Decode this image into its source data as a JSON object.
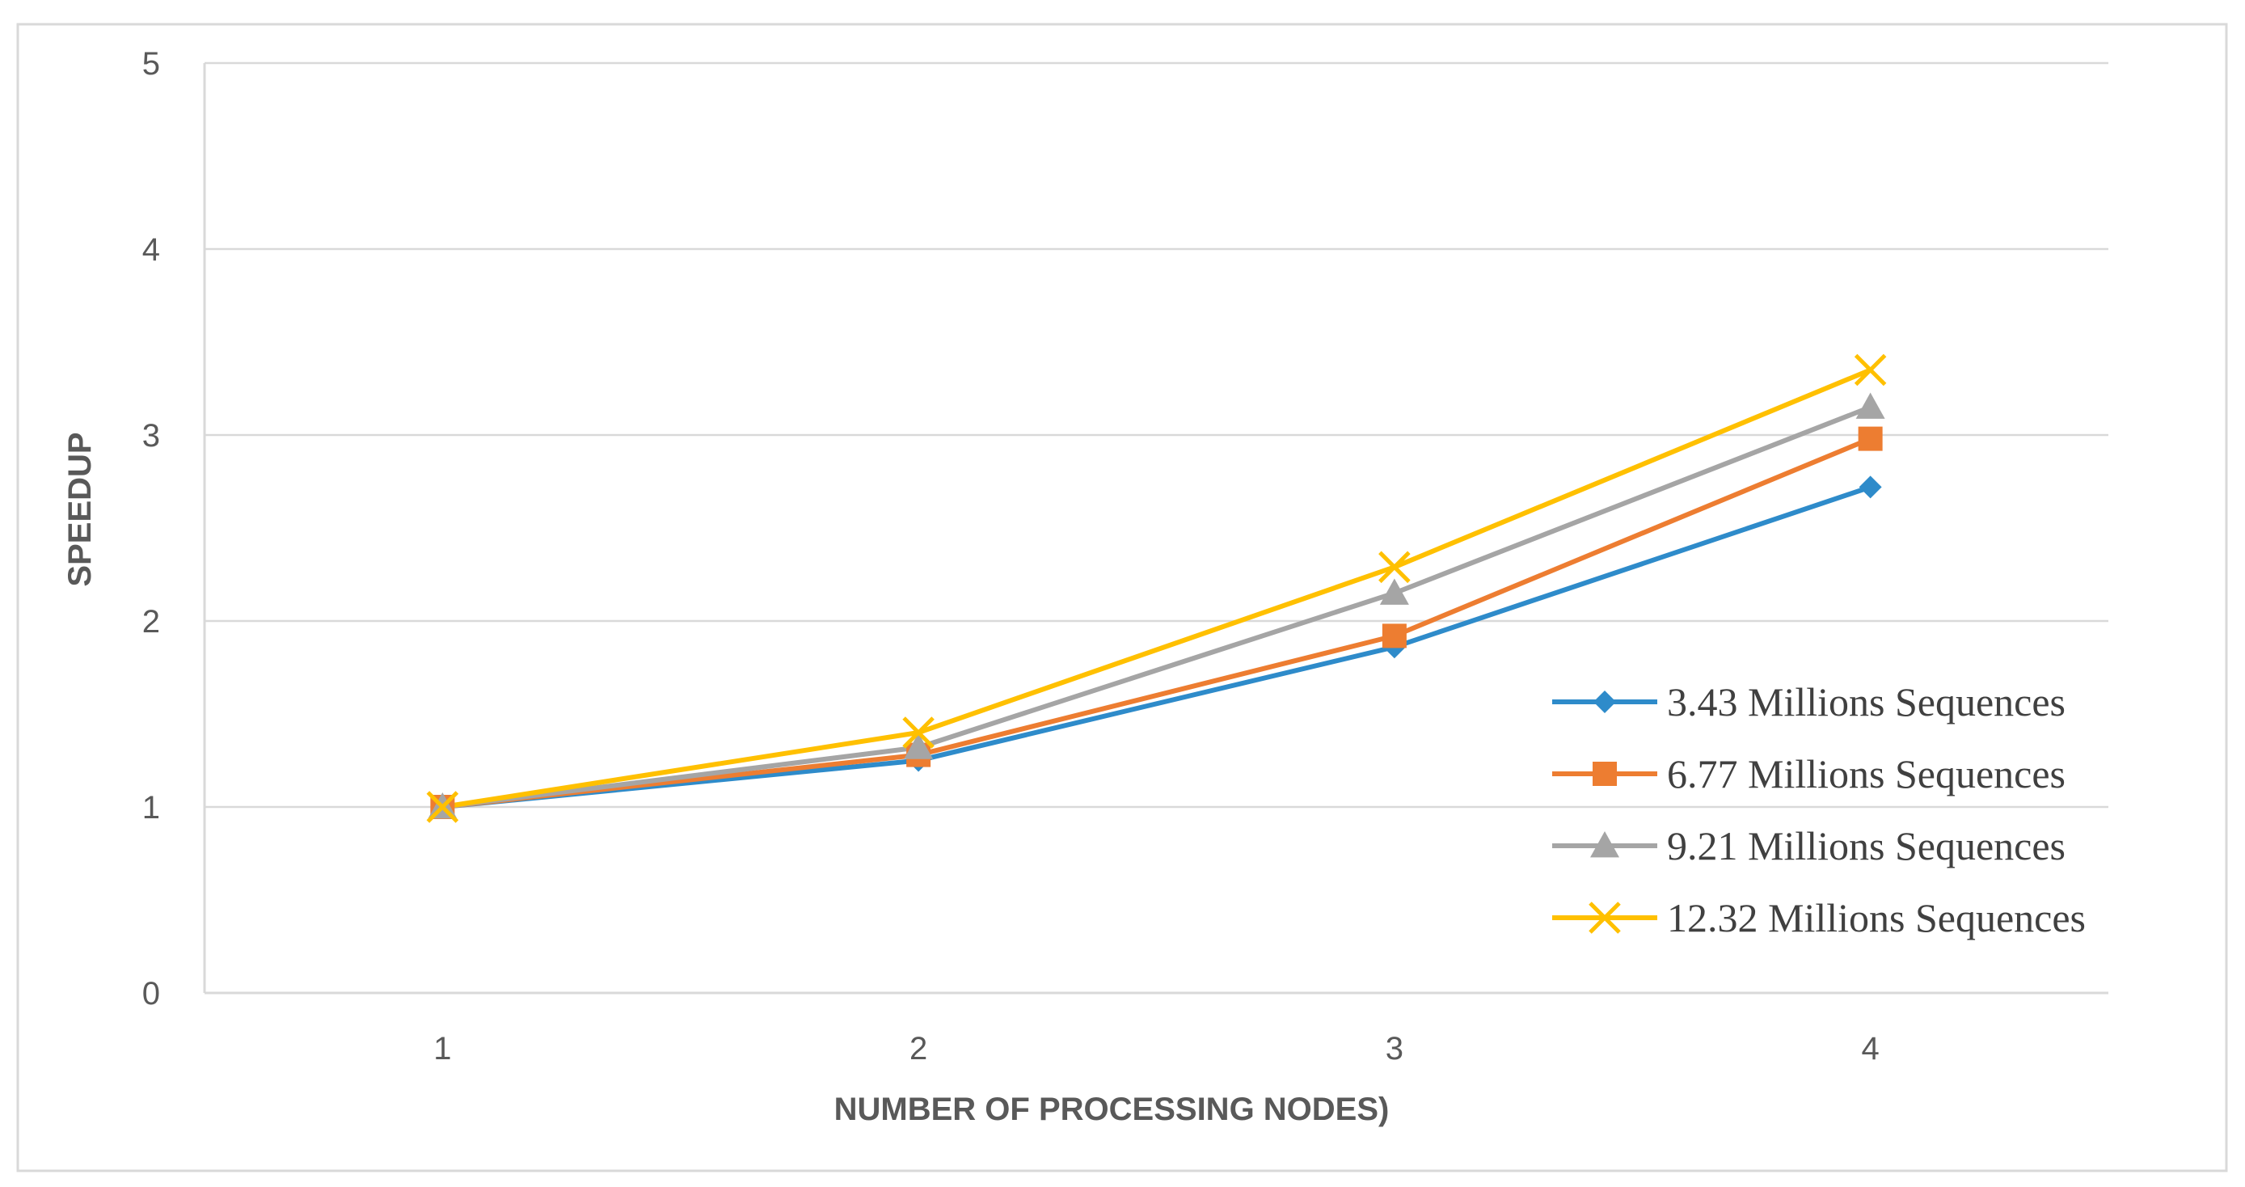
{
  "chart_data": {
    "type": "line",
    "title": "",
    "xlabel": "NUMBER OF PROCESSING NODES)",
    "ylabel": "SPEEDUP",
    "categories": [
      "1",
      "2",
      "3",
      "4"
    ],
    "ylim": [
      0,
      5
    ],
    "yticks": [
      "0",
      "1",
      "2",
      "3",
      "4",
      "5"
    ],
    "grid": true,
    "legend_position": "right",
    "series": [
      {
        "name": "3.43 Millions Sequences",
        "values": [
          1.0,
          1.25,
          1.86,
          2.72
        ],
        "color": "#2E8BCA",
        "marker": "diamond"
      },
      {
        "name": "6.77 Millions Sequences",
        "values": [
          1.0,
          1.28,
          1.92,
          2.98
        ],
        "color": "#ED7D31",
        "marker": "square"
      },
      {
        "name": "9.21 Millions Sequences",
        "values": [
          1.0,
          1.32,
          2.15,
          3.15
        ],
        "color": "#A5A5A5",
        "marker": "triangle"
      },
      {
        "name": "12.32 Millions Sequences",
        "values": [
          1.0,
          1.4,
          2.29,
          3.35
        ],
        "color": "#FFC000",
        "marker": "x"
      }
    ]
  }
}
